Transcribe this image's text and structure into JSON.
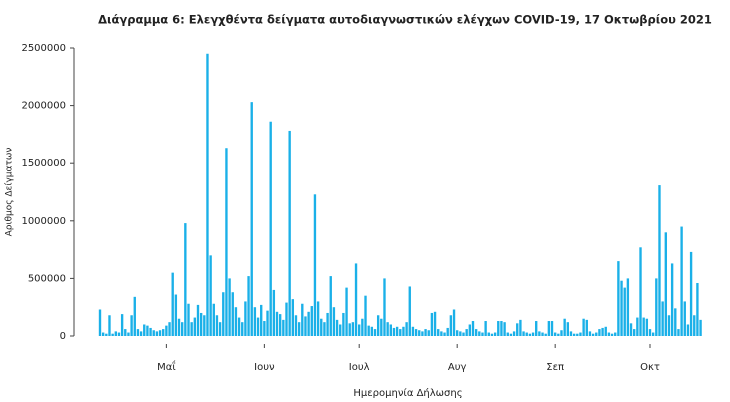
{
  "chart_data": {
    "type": "bar",
    "title": "Διάγραμμα 6: Ελεγχθέντα δείγματα αυτοδιαγνωστικών ελέγχων COVID-19, 17 Οκτωβρίου 2021",
    "x_label": "Ημερομηνία Δήλωσης",
    "y_label": "Αριθμος Δείγματων",
    "color": "#1ab0e8",
    "ylim": [
      0,
      2500000
    ],
    "yticks": [
      0,
      500000,
      1000000,
      1500000,
      2000000,
      2500000
    ],
    "categories": [
      null,
      null,
      null,
      null,
      null,
      null,
      null,
      null,
      null,
      null,
      null,
      null,
      null,
      null,
      null,
      null,
      null,
      null,
      null,
      null,
      null,
      "Μαΐ",
      null,
      null,
      null,
      null,
      null,
      null,
      null,
      null,
      null,
      null,
      null,
      null,
      null,
      null,
      null,
      null,
      null,
      null,
      null,
      null,
      null,
      null,
      null,
      null,
      null,
      null,
      null,
      null,
      null,
      null,
      "Ιουν",
      null,
      null,
      null,
      null,
      null,
      null,
      null,
      null,
      null,
      null,
      null,
      null,
      null,
      null,
      null,
      null,
      null,
      null,
      null,
      null,
      null,
      null,
      null,
      null,
      null,
      null,
      null,
      null,
      null,
      "Ιουλ",
      null,
      null,
      null,
      null,
      null,
      null,
      null,
      null,
      null,
      null,
      null,
      null,
      null,
      null,
      null,
      null,
      null,
      null,
      null,
      null,
      null,
      null,
      null,
      null,
      null,
      null,
      null,
      null,
      null,
      null,
      "Αυγ",
      null,
      null,
      null,
      null,
      null,
      null,
      null,
      null,
      null,
      null,
      null,
      null,
      null,
      null,
      null,
      null,
      null,
      null,
      null,
      null,
      null,
      null,
      null,
      null,
      null,
      null,
      null,
      null,
      null,
      null,
      "Σεπ",
      null,
      null,
      null,
      null,
      null,
      null,
      null,
      null,
      null,
      null,
      null,
      null,
      null,
      null,
      null,
      null,
      null,
      null,
      null,
      null,
      null,
      null,
      null,
      null,
      null,
      null,
      null,
      null,
      null,
      "Οκτ",
      null,
      null,
      null,
      null,
      null,
      null,
      null,
      null,
      null,
      null,
      null,
      null,
      null,
      null,
      null,
      null
    ],
    "values": [
      230000,
      30000,
      20000,
      180000,
      20000,
      40000,
      30000,
      190000,
      60000,
      30000,
      180000,
      340000,
      60000,
      40000,
      100000,
      90000,
      70000,
      50000,
      40000,
      50000,
      60000,
      90000,
      120000,
      550000,
      360000,
      150000,
      120000,
      980000,
      280000,
      120000,
      160000,
      270000,
      200000,
      180000,
      2450000,
      700000,
      280000,
      180000,
      120000,
      380000,
      1630000,
      500000,
      380000,
      250000,
      160000,
      120000,
      300000,
      520000,
      2030000,
      250000,
      160000,
      270000,
      130000,
      220000,
      1860000,
      400000,
      210000,
      190000,
      140000,
      290000,
      1780000,
      320000,
      180000,
      120000,
      280000,
      170000,
      210000,
      260000,
      1230000,
      300000,
      150000,
      120000,
      200000,
      520000,
      250000,
      140000,
      100000,
      200000,
      420000,
      110000,
      120000,
      630000,
      100000,
      150000,
      350000,
      90000,
      80000,
      60000,
      180000,
      150000,
      500000,
      120000,
      100000,
      70000,
      80000,
      60000,
      80000,
      120000,
      430000,
      80000,
      60000,
      50000,
      40000,
      60000,
      50000,
      200000,
      210000,
      60000,
      40000,
      30000,
      70000,
      180000,
      230000,
      50000,
      40000,
      30000,
      60000,
      100000,
      130000,
      60000,
      40000,
      30000,
      130000,
      30000,
      20000,
      30000,
      130000,
      130000,
      120000,
      30000,
      20000,
      40000,
      110000,
      140000,
      40000,
      30000,
      20000,
      30000,
      130000,
      40000,
      30000,
      20000,
      130000,
      130000,
      30000,
      20000,
      50000,
      150000,
      120000,
      40000,
      20000,
      20000,
      30000,
      150000,
      140000,
      40000,
      20000,
      30000,
      60000,
      70000,
      80000,
      30000,
      20000,
      30000,
      650000,
      480000,
      420000,
      500000,
      110000,
      60000,
      160000,
      770000,
      160000,
      150000,
      60000,
      30000,
      500000,
      1310000,
      300000,
      900000,
      180000,
      630000,
      240000,
      60000,
      950000,
      300000,
      100000,
      730000,
      180000,
      460000,
      140000
    ]
  }
}
